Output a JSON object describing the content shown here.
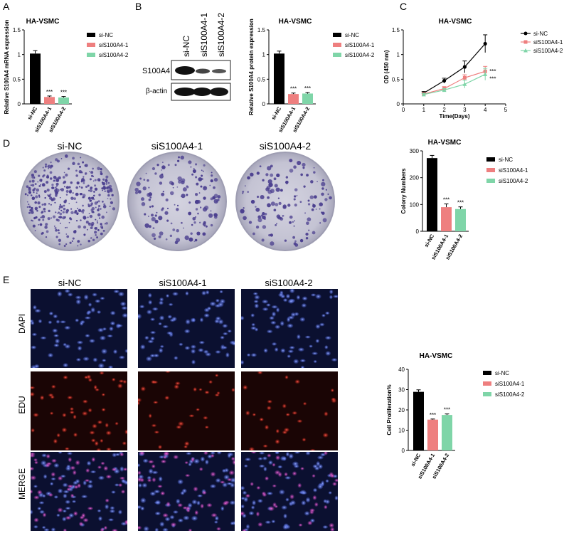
{
  "panel_letters": [
    "A",
    "B",
    "C",
    "D",
    "E"
  ],
  "colors": {
    "si_nc": "#000000",
    "si1": "#ee7f7f",
    "si2": "#7fd5a8",
    "blue_bg": "#0b1030",
    "red_bg": "#1a0505",
    "dish": "#c9c8d6",
    "colony": "#4b3f8f"
  },
  "blot": {
    "lanes": [
      "si-NC",
      "siS100A4-1",
      "siS100A4-2"
    ],
    "rows": [
      "S100A4",
      "β-actin"
    ]
  },
  "colony_dishes": [
    "si-NC",
    "siS100A4-1",
    "siS100A4-2"
  ],
  "edu_images": {
    "columns": [
      "si-NC",
      "siS100A4-1",
      "siS100A4-2"
    ],
    "rows": [
      "DAPI",
      "EDU",
      "MERGE"
    ]
  },
  "chart_data": [
    {
      "id": "A",
      "type": "bar",
      "title": "HA-VSMC",
      "ylabel": "Relative S100A4 mRNA expression",
      "categories": [
        "si-NC",
        "siS100A4-1",
        "siS100A4-2"
      ],
      "values": [
        1.02,
        0.14,
        0.13
      ],
      "errors": [
        0.06,
        0.02,
        0.02
      ],
      "ylim": [
        0,
        1.5
      ],
      "yticks": [
        0.0,
        0.5,
        1.0,
        1.5
      ],
      "annotations": [
        "",
        "***",
        "***"
      ],
      "legend": [
        "si-NC",
        "siS100A4-1",
        "siS100A4-2"
      ],
      "legend_position": "right"
    },
    {
      "id": "B",
      "type": "bar",
      "title": "HA-VSMC",
      "ylabel": "Relative S100A4 protein expression",
      "categories": [
        "si-NC",
        "siS100A4-1",
        "siS100A4-2"
      ],
      "values": [
        1.02,
        0.2,
        0.21
      ],
      "errors": [
        0.05,
        0.02,
        0.02
      ],
      "ylim": [
        0,
        1.5
      ],
      "yticks": [
        0.0,
        0.5,
        1.0,
        1.5
      ],
      "annotations": [
        "",
        "***",
        "***"
      ],
      "legend": [
        "si-NC",
        "siS100A4-1",
        "siS100A4-2"
      ],
      "legend_position": "right"
    },
    {
      "id": "C",
      "type": "line",
      "title": "HA-VSMC",
      "xlabel": "Time(Days)",
      "ylabel": "OD (450 nm)",
      "x": [
        1,
        2,
        3,
        4
      ],
      "xlim": [
        0,
        5
      ],
      "xticks": [
        0,
        1,
        2,
        3,
        4,
        5
      ],
      "ylim": [
        0,
        1.5
      ],
      "yticks": [
        0.0,
        0.5,
        1.0,
        1.5
      ],
      "series": [
        {
          "name": "si-NC",
          "values": [
            0.22,
            0.47,
            0.75,
            1.22
          ],
          "errors": [
            0.03,
            0.05,
            0.12,
            0.18
          ],
          "marker": "circle"
        },
        {
          "name": "siS100A4-1",
          "values": [
            0.2,
            0.31,
            0.53,
            0.66
          ],
          "errors": [
            0.02,
            0.04,
            0.06,
            0.1
          ],
          "marker": "square"
        },
        {
          "name": "siS100A4-2",
          "values": [
            0.19,
            0.28,
            0.4,
            0.6
          ],
          "errors": [
            0.02,
            0.03,
            0.08,
            0.12
          ],
          "marker": "triangle"
        }
      ],
      "annotations": [
        "***",
        "***"
      ],
      "legend_position": "right"
    },
    {
      "id": "D",
      "type": "bar",
      "title": "HA-VSMC",
      "ylabel": "Colony Numbers",
      "categories": [
        "si-NC",
        "siS100A4-1",
        "siS100A4-2"
      ],
      "values": [
        273,
        90,
        83
      ],
      "errors": [
        10,
        12,
        8
      ],
      "ylim": [
        0,
        300
      ],
      "yticks": [
        0,
        100,
        200,
        300
      ],
      "annotations": [
        "",
        "***",
        "***"
      ],
      "legend": [
        "si-NC",
        "siS100A4-1",
        "siS100A4-2"
      ],
      "legend_position": "right"
    },
    {
      "id": "E",
      "type": "bar",
      "title": "HA-VSMC",
      "ylabel": "Cell Proliferation%",
      "categories": [
        "si-NC",
        "siS100A4-1",
        "siS100A4-2"
      ],
      "values": [
        28.9,
        15.2,
        17.5
      ],
      "errors": [
        1.0,
        0.3,
        0.5
      ],
      "ylim": [
        0,
        40
      ],
      "yticks": [
        0,
        10,
        20,
        30,
        40
      ],
      "annotations": [
        "",
        "***",
        "***"
      ],
      "legend": [
        "si-NC",
        "siS100A4-1",
        "siS100A4-2"
      ],
      "legend_position": "right"
    }
  ]
}
